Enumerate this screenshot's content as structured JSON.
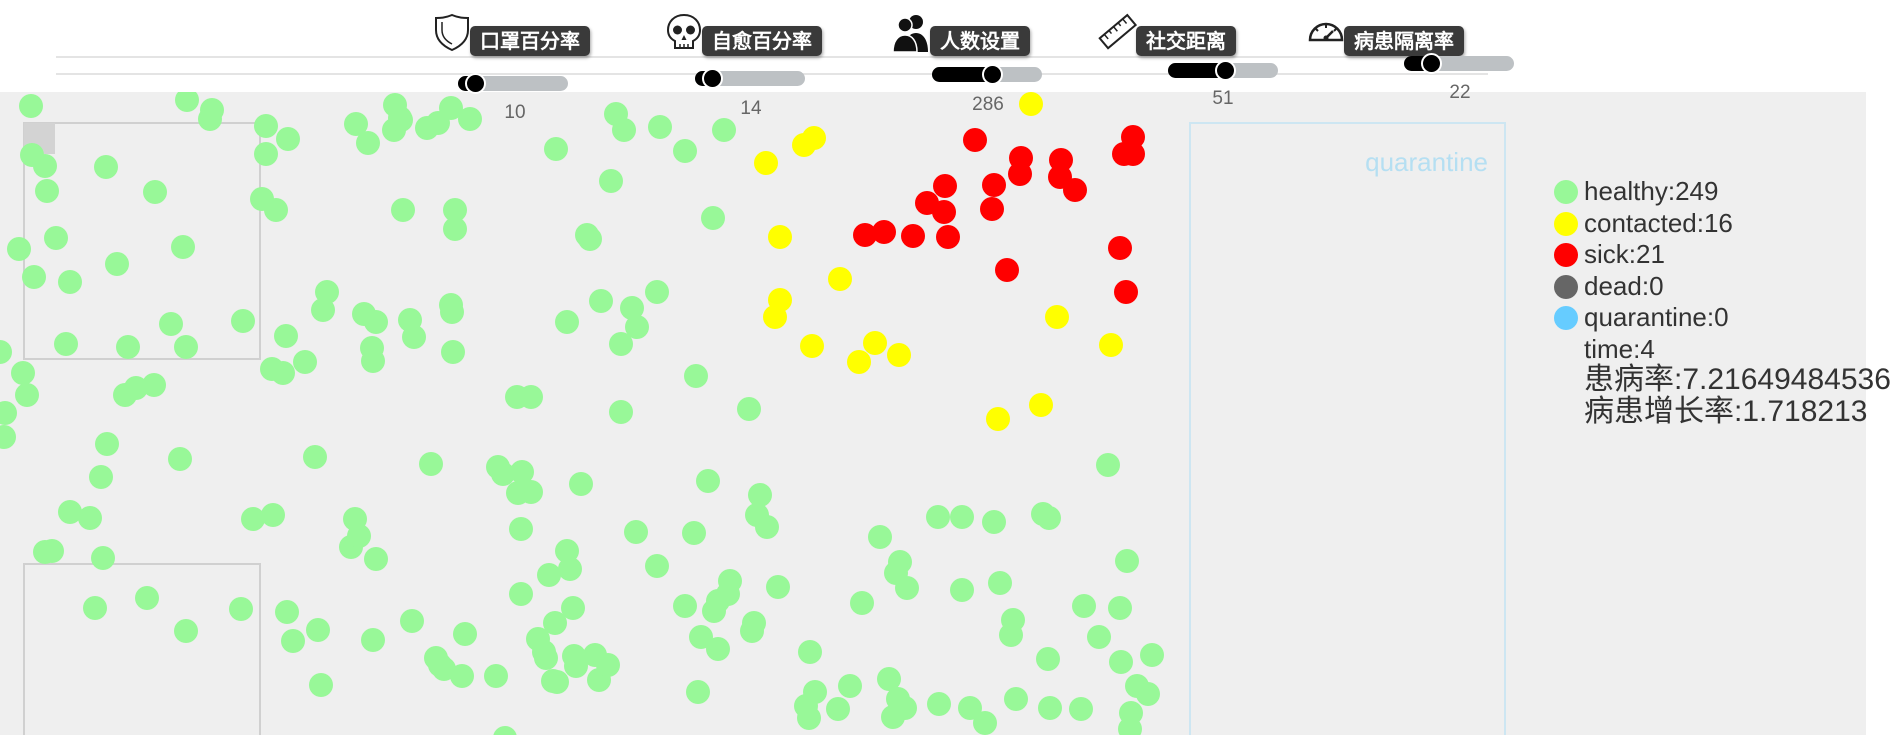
{
  "controls": [
    {
      "id": "mask",
      "label": "口罩百分率",
      "value": "10",
      "fraction": 0.1,
      "icon": "mask-shield-icon"
    },
    {
      "id": "recovery",
      "label": "自愈百分率",
      "value": "14",
      "fraction": 0.1,
      "icon": "skull-icon"
    },
    {
      "id": "population",
      "label": "人数设置",
      "value": "286",
      "fraction": 0.57,
      "icon": "people-icon"
    },
    {
      "id": "distance",
      "label": "社交距离",
      "value": "51",
      "fraction": 0.51,
      "icon": "ruler-icon"
    },
    {
      "id": "isolation",
      "label": "病患隔离率",
      "value": "22",
      "fraction": 0.22,
      "icon": "speedometer-icon"
    }
  ],
  "quarantine_zone": {
    "label": "quarantine"
  },
  "legend": {
    "items": [
      {
        "key": "healthy",
        "text": "healthy:249",
        "color": "#98f898"
      },
      {
        "key": "contacted",
        "text": "contacted:16",
        "color": "#ffff00"
      },
      {
        "key": "sick",
        "text": "sick:21",
        "color": "#ff0000"
      },
      {
        "key": "dead",
        "text": "dead:0",
        "color": "#666666"
      },
      {
        "key": "quarantine",
        "text": "quarantine:0",
        "color": "#66ccff"
      }
    ],
    "time": "time:4",
    "infection_rate": "患病率:7.21649484536",
    "growth_rate": "病患增长率:1.718213"
  },
  "colors": {
    "healthy": "#98f898",
    "contacted": "#ffff00",
    "sick": "#ff0000",
    "dead": "#666666",
    "quarantine": "#66ccff",
    "arena_background": "#efefef"
  }
}
